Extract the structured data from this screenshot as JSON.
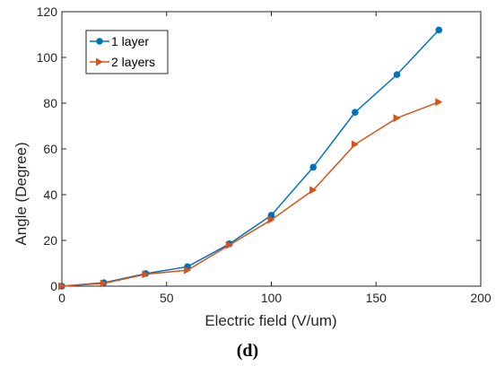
{
  "chart_data": {
    "type": "line",
    "title": "",
    "xlabel": "Electric field (V/um)",
    "ylabel": "Angle (Degree)",
    "xlim": [
      0,
      200
    ],
    "ylim": [
      0,
      120
    ],
    "x_ticks": [
      "0",
      "50",
      "100",
      "150",
      "200"
    ],
    "y_ticks": [
      "0",
      "20",
      "40",
      "60",
      "80",
      "100",
      "120"
    ],
    "grid": false,
    "legend_position": "top-left",
    "panel_label": "(d)",
    "x": [
      0,
      20,
      40,
      60,
      80,
      100,
      120,
      140,
      160,
      180
    ],
    "series": [
      {
        "name": "1 layer",
        "marker": "circle",
        "color": "#0072BD",
        "values": [
          0,
          1.5,
          5.5,
          8.5,
          18.5,
          31,
          52,
          76,
          92.5,
          112
        ]
      },
      {
        "name": "2 layers",
        "marker": "triangle-right",
        "color": "#D95319",
        "values": [
          0,
          1.2,
          5.2,
          7,
          18,
          29,
          42,
          62,
          73.5,
          80.5
        ]
      }
    ]
  }
}
